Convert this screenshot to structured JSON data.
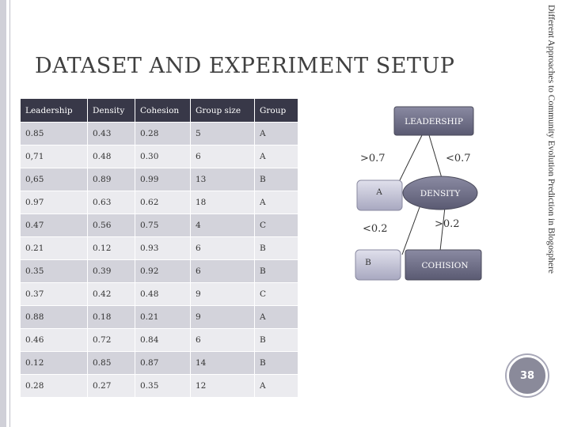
{
  "slide": {
    "title": "DATASET AND EXPERIMENT SETUP",
    "side_text": "Different Approaches to Community Evolution Prediction in Blogosphere",
    "page_number": "38"
  },
  "table": {
    "headers": [
      "Leadership",
      "Density",
      "Cohesion",
      "Group size",
      "Group"
    ],
    "rows": [
      [
        "0.85",
        "0.43",
        "0.28",
        "5",
        "A"
      ],
      [
        "0,71",
        "0.48",
        "0.30",
        "6",
        "A"
      ],
      [
        "0,65",
        "0.89",
        "0.99",
        "13",
        "B"
      ],
      [
        "0.97",
        "0.63",
        "0.62",
        "18",
        "A"
      ],
      [
        "0.47",
        "0.56",
        "0.75",
        "4",
        "C"
      ],
      [
        "0.21",
        "0.12",
        "0.93",
        "6",
        "B"
      ],
      [
        "0.35",
        "0.39",
        "0.92",
        "6",
        "B"
      ],
      [
        "0.37",
        "0.42",
        "0.48",
        "9",
        "C"
      ],
      [
        "0.88",
        "0.18",
        "0.21",
        "9",
        "A"
      ],
      [
        "0.46",
        "0.72",
        "0.84",
        "6",
        "B"
      ],
      [
        "0.12",
        "0.85",
        "0.87",
        "14",
        "B"
      ],
      [
        "0.28",
        "0.27",
        "0.35",
        "12",
        "A"
      ]
    ]
  },
  "tree": {
    "root": "LEADERSHIP",
    "root_left_edge": ">0.7",
    "root_right_edge": "<0.7",
    "leaf_a": "A",
    "density": "DENSITY",
    "density_left_edge": "<0.2",
    "density_right_edge": ">0.2",
    "leaf_b": "B",
    "cohision": "COHISION"
  },
  "colors": {
    "header_bg": "#383848",
    "row_odd": "#d3d3db",
    "row_even": "#ebebef",
    "node_fill": "#6a6a82",
    "leaf_fill": "#b8b8cc"
  }
}
